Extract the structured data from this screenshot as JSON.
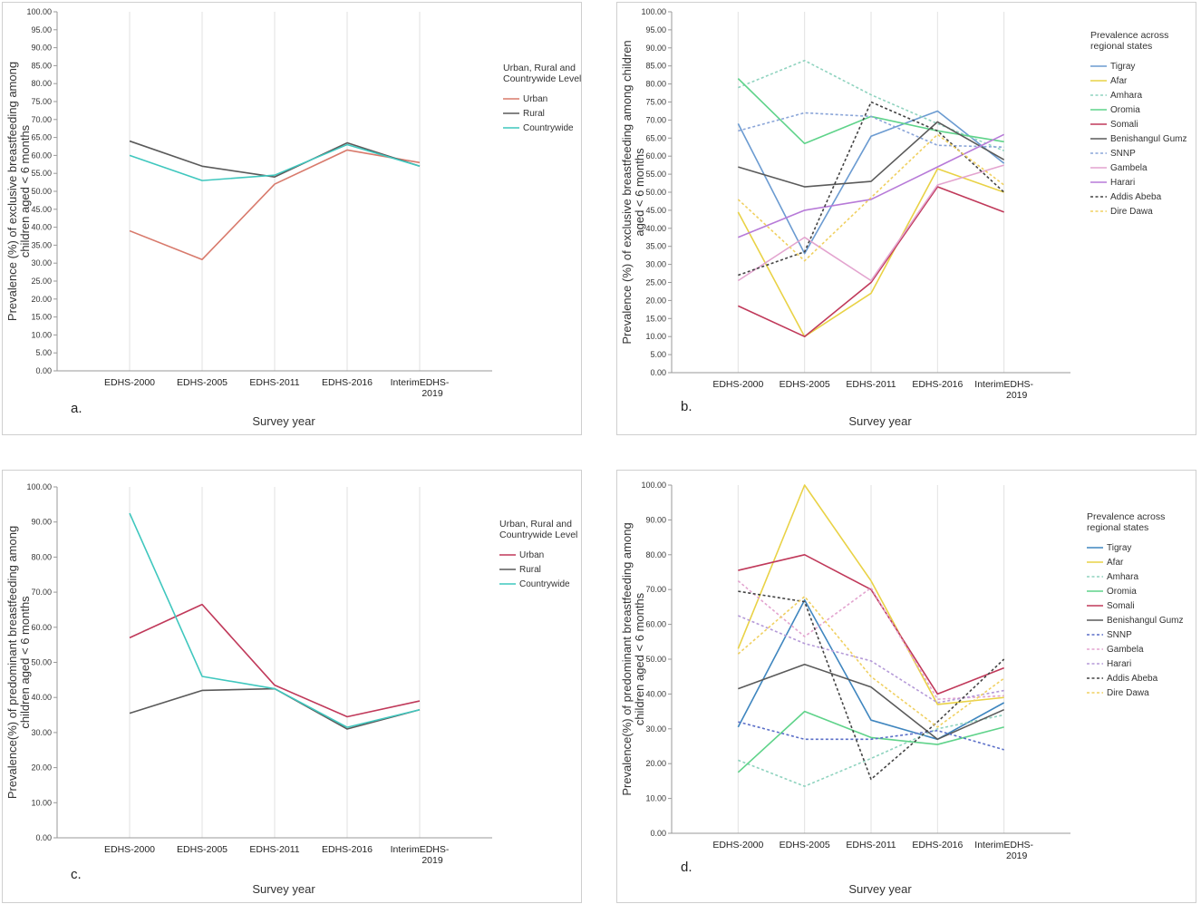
{
  "chart_data": [
    {
      "id": "a",
      "type": "line",
      "panel_label": "a.",
      "title": "",
      "xlabel": "Survey year",
      "ylabel": [
        "Prevalence (%) of exclusive breastfeeding  among",
        "children aged < 6 months"
      ],
      "categories": [
        "EDHS-2000",
        "EDHS-2005",
        "EDHS-2011",
        "EDHS-2016",
        "InterimEDHS-2019"
      ],
      "ylim": [
        0,
        100
      ],
      "ytick_step": 5,
      "ytick_labels": [
        "0.00",
        "5.00",
        "10.00",
        "15.00",
        "20.00",
        "25.00",
        "30.00",
        "35.00",
        "40.00",
        "45.00",
        "50.00",
        "55.00",
        "60.00",
        "65.00",
        "70.00",
        "75.00",
        "80.00",
        "85.00",
        "90.00",
        "95.00",
        "100.00"
      ],
      "legend_title": [
        "Urban, Rural and",
        "Countrywide Level"
      ],
      "legend_position": "right",
      "series": [
        {
          "name": "Urban",
          "color": "#d87a6c",
          "dash": false,
          "values": [
            39.0,
            31.0,
            52.0,
            61.5,
            58.0
          ]
        },
        {
          "name": "Rural",
          "color": "#5a5a5a",
          "dash": false,
          "values": [
            64.0,
            57.0,
            54.0,
            63.5,
            57.0
          ]
        },
        {
          "name": "Countrywide",
          "color": "#3fc7be",
          "dash": false,
          "values": [
            60.0,
            53.0,
            54.5,
            63.0,
            57.0
          ]
        }
      ]
    },
    {
      "id": "b",
      "type": "line",
      "panel_label": "b.",
      "title": "",
      "xlabel": "Survey year",
      "ylabel": [
        "Prevalence (%) of exclusive breastfeeding  among children",
        "aged < 6 months"
      ],
      "categories": [
        "EDHS-2000",
        "EDHS-2005",
        "EDHS-2011",
        "EDHS-2016",
        "InterimEDHS-2019"
      ],
      "ylim": [
        0,
        100
      ],
      "ytick_step": 5,
      "ytick_labels": [
        "0.00",
        "5.00",
        "10.00",
        "15.00",
        "20.00",
        "25.00",
        "30.00",
        "35.00",
        "40.00",
        "45.00",
        "50.00",
        "55.00",
        "60.00",
        "65.00",
        "70.00",
        "75.00",
        "80.00",
        "85.00",
        "90.00",
        "95.00",
        "100.00"
      ],
      "legend_title": [
        "Prevalence across",
        "regional states"
      ],
      "legend_position": "right",
      "series": [
        {
          "name": "Tigray",
          "color": "#6b9bd1",
          "dash": false,
          "values": [
            69.0,
            33.0,
            65.5,
            72.5,
            58.0
          ]
        },
        {
          "name": "Afar",
          "color": "#e9d246",
          "dash": false,
          "values": [
            44.5,
            10.0,
            22.0,
            56.5,
            50.0
          ]
        },
        {
          "name": "Amhara",
          "color": "#8fd3bf",
          "dash": true,
          "values": [
            79.0,
            86.5,
            77.0,
            69.0,
            61.5
          ]
        },
        {
          "name": "Oromia",
          "color": "#5fd38a",
          "dash": false,
          "values": [
            81.5,
            63.5,
            71.0,
            67.0,
            64.0
          ]
        },
        {
          "name": "Somali",
          "color": "#c0395a",
          "dash": false,
          "values": [
            18.5,
            10.0,
            25.0,
            51.5,
            44.5
          ]
        },
        {
          "name": "Benishangul Gumz",
          "color": "#5a5a5a",
          "dash": false,
          "values": [
            57.0,
            51.5,
            53.0,
            69.5,
            59.0
          ]
        },
        {
          "name": "SNNP",
          "color": "#8aa5d8",
          "dash": true,
          "values": [
            67.0,
            72.0,
            71.0,
            63.0,
            62.5
          ]
        },
        {
          "name": "Gambela",
          "color": "#e3a4cf",
          "dash": false,
          "values": [
            25.5,
            37.5,
            25.5,
            52.0,
            57.5
          ]
        },
        {
          "name": "Harari",
          "color": "#b77ad8",
          "dash": false,
          "values": [
            37.5,
            45.0,
            48.0,
            57.0,
            66.0
          ]
        },
        {
          "name": "Addis Abeba",
          "color": "#444444",
          "dash": true,
          "values": [
            27.0,
            33.5,
            75.0,
            67.0,
            50.0
          ]
        },
        {
          "name": "Dire Dawa",
          "color": "#f0d060",
          "dash": true,
          "values": [
            48.0,
            31.0,
            48.5,
            66.0,
            52.0
          ]
        }
      ]
    },
    {
      "id": "c",
      "type": "line",
      "panel_label": "c.",
      "title": "",
      "xlabel": "Survey year",
      "ylabel": [
        "Prevalence(%) of predominant breastfeeding among",
        "children aged < 6 months"
      ],
      "categories": [
        "EDHS-2000",
        "EDHS-2005",
        "EDHS-2011",
        "EDHS-2016",
        "InterimEDHS-2019"
      ],
      "ylim": [
        0,
        100
      ],
      "ytick_step": 10,
      "ytick_labels": [
        "0.00",
        "10.00",
        "20.00",
        "30.00",
        "40.00",
        "50.00",
        "60.00",
        "70.00",
        "80.00",
        "90.00",
        "100.00"
      ],
      "legend_title": [
        "Urban, Rural and",
        "Countrywide Level"
      ],
      "legend_position": "right",
      "series": [
        {
          "name": "Urban",
          "color": "#c0395a",
          "dash": false,
          "values": [
            57.0,
            66.5,
            43.5,
            34.5,
            39.0
          ]
        },
        {
          "name": "Rural",
          "color": "#5a5a5a",
          "dash": false,
          "values": [
            35.5,
            42.0,
            42.5,
            31.0,
            36.5
          ]
        },
        {
          "name": "Countrywide",
          "color": "#3fc7be",
          "dash": false,
          "values": [
            92.5,
            46.0,
            42.5,
            31.5,
            36.5
          ]
        }
      ]
    },
    {
      "id": "d",
      "type": "line",
      "panel_label": "d.",
      "title": "",
      "xlabel": "Survey year",
      "ylabel": [
        "Prevalence(%) of predominant breastfeeding among",
        "children aged < 6 months"
      ],
      "categories": [
        "EDHS-2000",
        "EDHS-2005",
        "EDHS-2011",
        "EDHS-2016",
        "InterimEDHS-2019"
      ],
      "ylim": [
        0,
        100
      ],
      "ytick_step": 10,
      "ytick_labels": [
        "0.00",
        "10.00",
        "20.00",
        "30.00",
        "40.00",
        "50.00",
        "60.00",
        "70.00",
        "80.00",
        "90.00",
        "100.00"
      ],
      "legend_title": [
        "Prevalence across",
        "regional states"
      ],
      "legend_position": "right",
      "series": [
        {
          "name": "Tigray",
          "color": "#3f86bf",
          "dash": false,
          "values": [
            30.5,
            67.0,
            32.5,
            27.0,
            37.5
          ]
        },
        {
          "name": "Afar",
          "color": "#e9d246",
          "dash": false,
          "values": [
            53.0,
            100.0,
            72.5,
            37.0,
            39.0
          ]
        },
        {
          "name": "Amhara",
          "color": "#8fd3bf",
          "dash": true,
          "values": [
            21.0,
            13.5,
            21.5,
            30.0,
            34.0
          ]
        },
        {
          "name": "Oromia",
          "color": "#5fd38a",
          "dash": false,
          "values": [
            17.5,
            35.0,
            27.5,
            25.5,
            30.5
          ]
        },
        {
          "name": "Somali",
          "color": "#c0395a",
          "dash": false,
          "values": [
            75.5,
            80.0,
            70.0,
            40.0,
            47.5
          ]
        },
        {
          "name": "Benishangul Gumz",
          "color": "#5a5a5a",
          "dash": false,
          "values": [
            41.5,
            48.5,
            42.0,
            27.0,
            35.5
          ]
        },
        {
          "name": "SNNP",
          "color": "#5b6fc8",
          "dash": true,
          "values": [
            32.0,
            27.0,
            27.0,
            29.5,
            24.0
          ]
        },
        {
          "name": "Gambela",
          "color": "#e3a4cf",
          "dash": true,
          "values": [
            72.5,
            56.5,
            70.5,
            38.5,
            39.5
          ]
        },
        {
          "name": "Harari",
          "color": "#b59ad8",
          "dash": true,
          "values": [
            62.5,
            54.5,
            49.5,
            37.5,
            41.0
          ]
        },
        {
          "name": "Addis Abeba",
          "color": "#444444",
          "dash": true,
          "values": [
            69.5,
            66.5,
            15.5,
            32.0,
            50.0
          ]
        },
        {
          "name": "Dire Dawa",
          "color": "#f0d060",
          "dash": true,
          "values": [
            51.5,
            68.0,
            45.0,
            30.5,
            44.5
          ]
        }
      ]
    }
  ]
}
